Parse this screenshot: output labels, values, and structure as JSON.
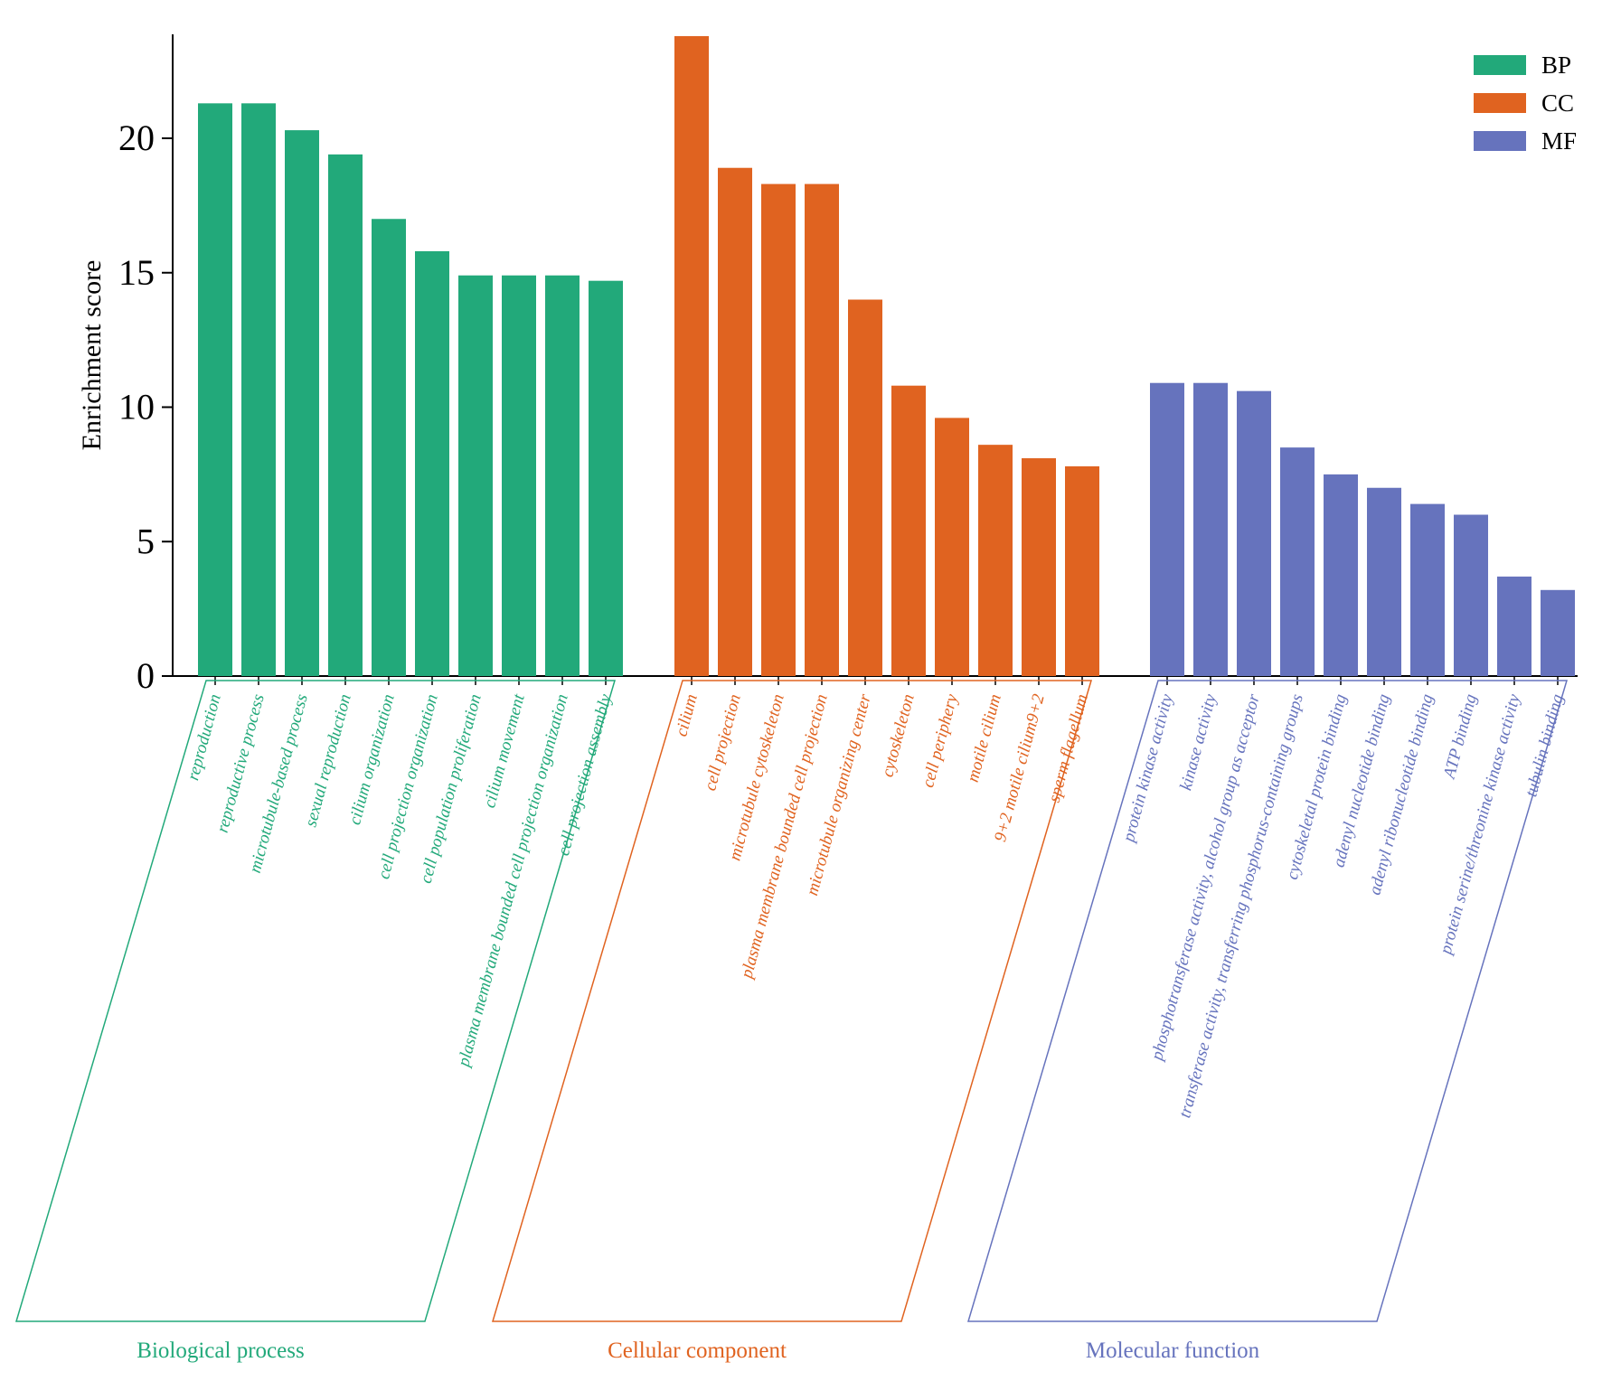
{
  "chart_data": {
    "type": "bar",
    "title": "",
    "ylabel": "Enrichment score",
    "xlabel": "",
    "ylim": [
      0,
      24
    ],
    "yticks": [
      0,
      5,
      10,
      15,
      20
    ],
    "grid": false,
    "legend_position": "top-right",
    "groups": [
      {
        "key": "BP",
        "name": "Biological process",
        "color": "#22a97a",
        "categories": [
          "reproduction",
          "reproductive process",
          "microtubule-based process",
          "sexual reproduction",
          "cilium organization",
          "cell projection organization",
          "cell population proliferation",
          "cilium movement",
          "plasma membrane bounded cell projection organization",
          "cell projection assembly"
        ],
        "values": [
          21.3,
          21.3,
          20.3,
          19.4,
          17.0,
          15.8,
          14.9,
          14.9,
          14.9,
          14.7
        ]
      },
      {
        "key": "CC",
        "name": "Cellular component",
        "color": "#e06320",
        "categories": [
          "cilium",
          "cell projection",
          "microtubule cytoskeleton",
          "plasma membrane bounded cell projection",
          "microtubule organizing center",
          "cytoskeleton",
          "cell periphery",
          "motile cilium",
          "9+2 motile cilium9+2",
          "sperm flagellum"
        ],
        "values": [
          23.8,
          18.9,
          18.3,
          18.3,
          14.0,
          10.8,
          9.6,
          8.6,
          8.1,
          7.8
        ]
      },
      {
        "key": "MF",
        "name": "Molecular function",
        "color": "#6673bd",
        "categories": [
          "protein kinase activity",
          "kinase activity",
          "phosphotransferase activity, alcohol group as acceptor",
          "transferase activity, transferring phosphorus-containing groups",
          "cytoskeletal protein binding",
          "adenyl nucleotide binding",
          "adenyl ribonucleotide binding",
          "ATP binding",
          "protein serine/threonine kinase activity",
          "tubulin binding"
        ],
        "values": [
          10.9,
          10.9,
          10.6,
          8.5,
          7.5,
          7.0,
          6.4,
          6.0,
          3.7,
          3.2
        ]
      }
    ],
    "legend": [
      {
        "label": "BP",
        "color": "#22a97a"
      },
      {
        "label": "CC",
        "color": "#e06320"
      },
      {
        "label": "MF",
        "color": "#6673bd"
      }
    ]
  }
}
